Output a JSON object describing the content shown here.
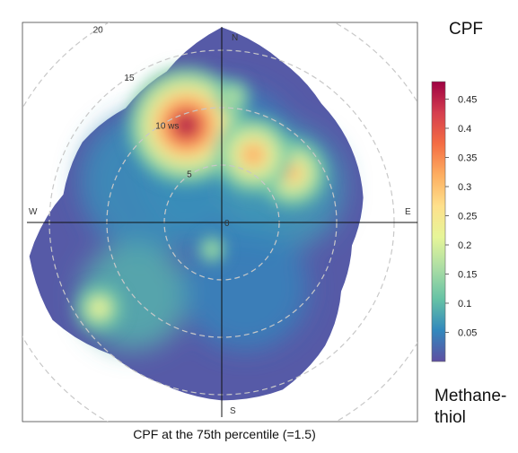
{
  "chart_data": {
    "type": "heatmap",
    "title": "CPF",
    "series_label": "Methane-\nthiol",
    "caption": "CPF at the 75th percentile (=1.5)",
    "polar": {
      "radial_unit_label": "ws",
      "ring_values": [
        5,
        10,
        15,
        20
      ],
      "ring_labels": [
        "5",
        "10 ws",
        "15",
        "20"
      ],
      "center_label": "0",
      "directions": [
        "N",
        "E",
        "S",
        "W"
      ]
    },
    "colorbar": {
      "min": 0,
      "max": 0.48,
      "ticks": [
        0.05,
        0.1,
        0.15,
        0.2,
        0.25,
        0.3,
        0.35,
        0.4,
        0.45
      ],
      "tick_labels": [
        "0.05",
        "0.1",
        "0.15",
        "0.2",
        "0.25",
        "0.3",
        "0.35",
        "0.4",
        "0.45"
      ],
      "colors": [
        "#5e4fa2",
        "#3288bd",
        "#66c2a5",
        "#abdda4",
        "#e6f598",
        "#fee08b",
        "#fdae61",
        "#f46d43",
        "#d53e4f",
        "#9e0142"
      ]
    },
    "hotspots": [
      {
        "direction_deg": 340,
        "ws": 9,
        "cpf": 0.47
      },
      {
        "direction_deg": 55,
        "ws": 7.5,
        "cpf": 0.3
      },
      {
        "direction_deg": 25,
        "ws": 6.5,
        "cpf": 0.33
      },
      {
        "direction_deg": 235,
        "ws": 13,
        "cpf": 0.22
      },
      {
        "direction_deg": 200,
        "ws": 2.5,
        "cpf": 0.15
      },
      {
        "direction_deg": 5,
        "ws": 11,
        "cpf": 0.18
      }
    ]
  }
}
